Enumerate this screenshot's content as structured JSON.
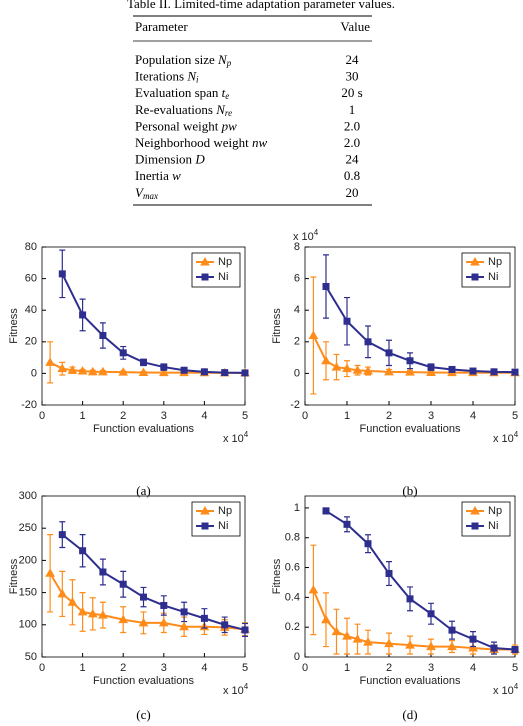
{
  "table": {
    "caption": "Table II. Limited-time adaptation parameter values.",
    "header": [
      "Parameter",
      "Value"
    ],
    "rows": [
      {
        "label": "Population size",
        "symbol": "N",
        "sub": "p",
        "value": "24"
      },
      {
        "label": "Iterations",
        "symbol": "N",
        "sub": "i",
        "value": "30"
      },
      {
        "label": "Evaluation span",
        "symbol": "t",
        "sub": "e",
        "value": "20 s"
      },
      {
        "label": "Re-evaluations",
        "symbol": "N",
        "sub": "re",
        "value": "1"
      },
      {
        "label": "Personal weight",
        "symbol": "pw",
        "value": "2.0"
      },
      {
        "label": "Neighborhood weight",
        "symbol": "nw",
        "value": "2.0"
      },
      {
        "label": "Dimension",
        "symbol": "D",
        "value": "24"
      },
      {
        "label": "Inertia",
        "symbol": "w",
        "value": "0.8"
      },
      {
        "symbol": "V",
        "sub": "max",
        "value": "20"
      }
    ]
  },
  "chart_data": [
    {
      "type": "line",
      "label": "(a)",
      "xlabel": "Function evaluations",
      "ylabel": "Fitness",
      "x_scale_label": {
        "base": "x 10",
        "exp": "4"
      },
      "xlim": [
        0,
        5
      ],
      "xticks": [
        0,
        1,
        2,
        3,
        4,
        5
      ],
      "ylim": [
        -20,
        80
      ],
      "yticks": [
        -20,
        0,
        20,
        40,
        60,
        80
      ],
      "legend": "upper right",
      "series": [
        {
          "name": "Np",
          "color": "#ff8c1a",
          "marker": "triangle",
          "x": [
            0.2,
            0.5,
            0.75,
            1,
            1.25,
            1.5,
            2,
            2.5,
            3,
            3.5,
            4,
            4.5,
            5
          ],
          "values": [
            7,
            3,
            2,
            1.5,
            1,
            1,
            0.8,
            0.6,
            0.5,
            0.5,
            0.4,
            0.3,
            0.3
          ],
          "errors": [
            13,
            4,
            2,
            1,
            1,
            0.8,
            0.6,
            0.5,
            0.4,
            0.4,
            0.3,
            0.3,
            0.2
          ]
        },
        {
          "name": "Ni",
          "color": "#2e2e8f",
          "marker": "square",
          "x": [
            0.5,
            1,
            1.5,
            2,
            2.5,
            3,
            3.5,
            4,
            4.5,
            5
          ],
          "values": [
            63,
            37,
            24,
            13,
            7,
            4,
            2,
            1,
            0.5,
            0.3
          ],
          "errors": [
            15,
            10,
            8,
            4,
            2,
            2,
            1,
            0.8,
            0.5,
            0.3
          ]
        }
      ]
    },
    {
      "type": "line",
      "label": "(b)",
      "xlabel": "Function evaluations",
      "ylabel": "Fitness",
      "x_scale_label": {
        "base": "x 10",
        "exp": "4"
      },
      "y_scale_label": {
        "base": "x 10",
        "exp": "4"
      },
      "xlim": [
        0,
        5
      ],
      "xticks": [
        0,
        1,
        2,
        3,
        4,
        5
      ],
      "ylim": [
        -2,
        8
      ],
      "yticks": [
        -2,
        0,
        2,
        4,
        6,
        8
      ],
      "legend": "upper right",
      "series": [
        {
          "name": "Np",
          "color": "#ff8c1a",
          "marker": "triangle",
          "x": [
            0.2,
            0.5,
            0.75,
            1,
            1.25,
            1.5,
            2,
            2.5,
            3,
            3.5,
            4,
            4.5,
            5
          ],
          "values": [
            2.4,
            0.8,
            0.4,
            0.3,
            0.2,
            0.15,
            0.1,
            0.08,
            0.06,
            0.05,
            0.05,
            0.04,
            0.04
          ],
          "errors": [
            3.7,
            1.2,
            0.8,
            0.5,
            0.3,
            0.25,
            0.15,
            0.1,
            0.08,
            0.06,
            0.05,
            0.05,
            0.04
          ]
        },
        {
          "name": "Ni",
          "color": "#2e2e8f",
          "marker": "square",
          "x": [
            0.5,
            1,
            1.5,
            2,
            2.5,
            3,
            3.5,
            4,
            4.5,
            5
          ],
          "values": [
            5.5,
            3.3,
            2,
            1.3,
            0.8,
            0.4,
            0.25,
            0.15,
            0.1,
            0.08
          ],
          "errors": [
            2,
            1.5,
            1,
            0.8,
            0.5,
            0.2,
            0.15,
            0.1,
            0.08,
            0.05
          ]
        }
      ]
    },
    {
      "type": "line",
      "label": "(c)",
      "xlabel": "Function evaluations",
      "ylabel": "Fitness",
      "x_scale_label": {
        "base": "x 10",
        "exp": "4"
      },
      "xlim": [
        0,
        5
      ],
      "xticks": [
        0,
        1,
        2,
        3,
        4,
        5
      ],
      "ylim": [
        50,
        300
      ],
      "yticks": [
        50,
        100,
        150,
        200,
        250,
        300
      ],
      "legend": "upper right",
      "series": [
        {
          "name": "Np",
          "color": "#ff8c1a",
          "marker": "triangle",
          "x": [
            0.2,
            0.5,
            0.75,
            1,
            1.25,
            1.5,
            2,
            2.5,
            3,
            3.5,
            4,
            4.5,
            5
          ],
          "values": [
            180,
            148,
            135,
            120,
            117,
            115,
            108,
            103,
            103,
            97,
            97,
            96,
            93
          ],
          "errors": [
            60,
            35,
            35,
            30,
            25,
            20,
            20,
            17,
            15,
            15,
            12,
            12,
            10
          ]
        },
        {
          "name": "Ni",
          "color": "#2e2e8f",
          "marker": "square",
          "x": [
            0.5,
            1,
            1.5,
            2,
            2.5,
            3,
            3.5,
            4,
            4.5,
            5
          ],
          "values": [
            240,
            215,
            182,
            163,
            143,
            130,
            120,
            110,
            100,
            92
          ],
          "errors": [
            20,
            25,
            20,
            20,
            15,
            15,
            15,
            15,
            12,
            10
          ]
        }
      ]
    },
    {
      "type": "line",
      "label": "(d)",
      "xlabel": "Function evaluations",
      "ylabel": "Fitness",
      "x_scale_label": {
        "base": "x 10",
        "exp": "4"
      },
      "xlim": [
        0,
        5
      ],
      "xticks": [
        0,
        1,
        2,
        3,
        4,
        5
      ],
      "ylim": [
        0,
        1.08
      ],
      "yticks": [
        0,
        0.2,
        0.4,
        0.6,
        0.8,
        1
      ],
      "legend": "upper right",
      "series": [
        {
          "name": "Np",
          "color": "#ff8c1a",
          "marker": "triangle",
          "x": [
            0.2,
            0.5,
            0.75,
            1,
            1.25,
            1.5,
            2,
            2.5,
            3,
            3.5,
            4,
            4.5,
            5
          ],
          "values": [
            0.45,
            0.25,
            0.17,
            0.14,
            0.12,
            0.1,
            0.09,
            0.08,
            0.07,
            0.07,
            0.06,
            0.05,
            0.05
          ],
          "errors": [
            0.3,
            0.18,
            0.15,
            0.12,
            0.1,
            0.08,
            0.07,
            0.06,
            0.05,
            0.04,
            0.04,
            0.03,
            0.03
          ]
        },
        {
          "name": "Ni",
          "color": "#2e2e8f",
          "marker": "square",
          "x": [
            0.5,
            1,
            1.5,
            2,
            2.5,
            3,
            3.5,
            4,
            4.5,
            5
          ],
          "values": [
            0.98,
            0.89,
            0.76,
            0.56,
            0.39,
            0.29,
            0.18,
            0.12,
            0.06,
            0.05
          ],
          "errors": [
            0.02,
            0.05,
            0.06,
            0.08,
            0.08,
            0.07,
            0.06,
            0.05,
            0.04,
            0.02
          ]
        }
      ]
    }
  ]
}
